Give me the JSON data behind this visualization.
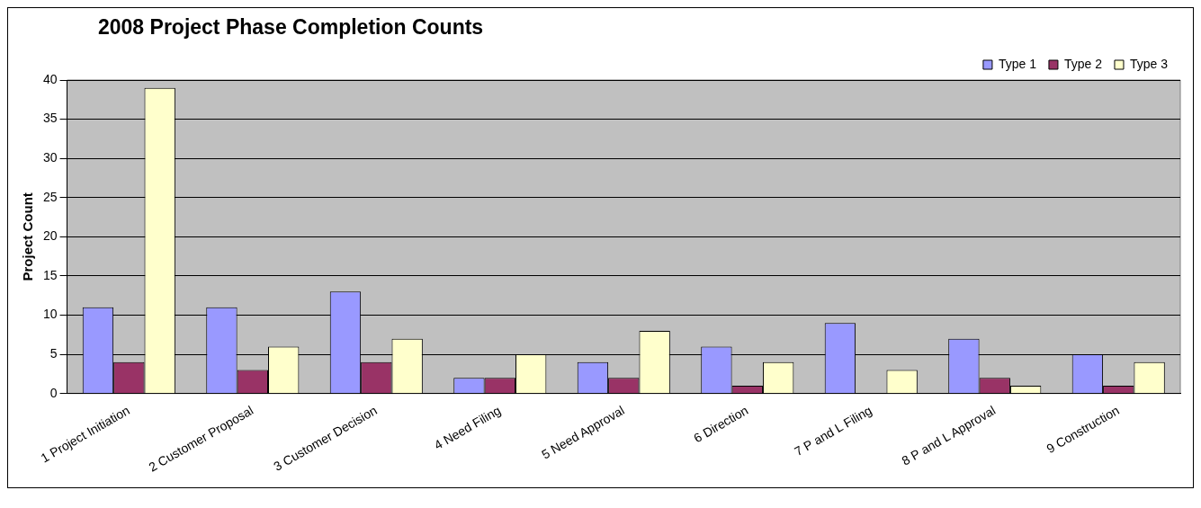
{
  "chart_data": {
    "type": "bar",
    "title": "2008 Project Phase Completion Counts",
    "ylabel": "Project Count",
    "categories": [
      "1 Project Initiation",
      "2 Customer Proposal",
      "3 Customer Decision",
      "4 Need Filing",
      "5 Need Approval",
      "6 Direction",
      "7 P and L Filing",
      "8 P and L Approval",
      "9 Construction"
    ],
    "series": [
      {
        "name": "Type 1",
        "color": "#9999ff",
        "values": [
          11,
          11,
          13,
          2,
          4,
          6,
          9,
          7,
          5
        ]
      },
      {
        "name": "Type 2",
        "color": "#993366",
        "values": [
          4,
          3,
          4,
          2,
          2,
          1,
          0,
          2,
          1
        ]
      },
      {
        "name": "Type 3",
        "color": "#ffffcc",
        "values": [
          39,
          6,
          7,
          5,
          8,
          4,
          3,
          1,
          4
        ]
      }
    ],
    "ylim": [
      0,
      40
    ],
    "yticks": [
      0,
      5,
      10,
      15,
      20,
      25,
      30,
      35,
      40
    ],
    "grid": "y",
    "legend": "top right"
  }
}
